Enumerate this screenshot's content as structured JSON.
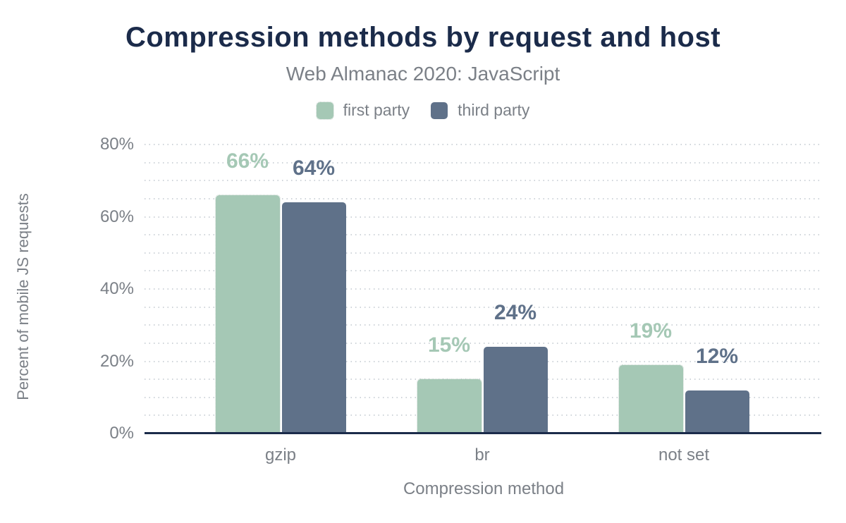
{
  "header": {
    "title": "Compression methods by request and host",
    "subtitle": "Web Almanac 2020: JavaScript"
  },
  "legend": {
    "items": [
      {
        "label": "first party",
        "color": "#a5c8b5"
      },
      {
        "label": "third party",
        "color": "#5f7189"
      }
    ]
  },
  "axes": {
    "y_title": "Percent of mobile JS requests",
    "x_title": "Compression method",
    "y_ticks": [
      {
        "label": "0%",
        "value": 0
      },
      {
        "label": "20%",
        "value": 20
      },
      {
        "label": "40%",
        "value": 40
      },
      {
        "label": "60%",
        "value": 60
      },
      {
        "label": "80%",
        "value": 80
      }
    ]
  },
  "chart_data": {
    "type": "bar",
    "title": "Compression methods by request and host",
    "subtitle": "Web Almanac 2020: JavaScript",
    "categories": [
      "gzip",
      "br",
      "not set"
    ],
    "series": [
      {
        "name": "first party",
        "color": "#a5c8b5",
        "values": [
          66,
          15,
          19
        ]
      },
      {
        "name": "third party",
        "color": "#5f7189",
        "values": [
          64,
          24,
          12
        ]
      }
    ],
    "value_suffix": "%",
    "data_labels": true,
    "xlabel": "Compression method",
    "ylabel": "Percent of mobile JS requests",
    "ylim": [
      0,
      80
    ],
    "y_tick_step": 20,
    "minor_grid_step": 5,
    "grid": "horizontal-dotted",
    "legend_position": "top"
  },
  "colors": {
    "background": "#ffffff",
    "title": "#1b2b4a",
    "text_gray": "#7b8087",
    "gridline": "#cfd4da",
    "baseline": "#1b2b4a",
    "first_party": "#a5c8b5",
    "third_party": "#5f7189"
  }
}
